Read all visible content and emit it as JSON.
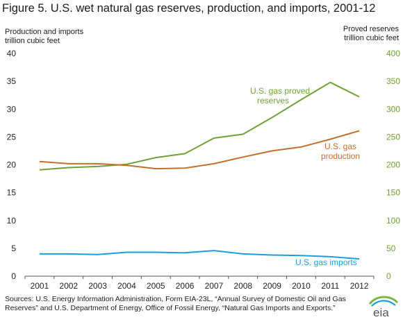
{
  "figure": {
    "title": "Figure 5. U.S. wet natural gas reserves, production, and imports, 2001-12",
    "left_axis_title": [
      "Production and imports",
      "trillion cubic feet"
    ],
    "right_axis_title": [
      "Proved reserves",
      "trillion cubic feet"
    ],
    "source": "Sources: U.S. Energy Information Administration, Form EIA-23L, “Annual Survey of Domestic Oil and Gas Reserves” and U.S. Department of Energy, Office of Fossil Energy, “Natural Gas Imports and Exports.”",
    "logo_text": "eia"
  },
  "chart_data": {
    "type": "line",
    "x": [
      2001,
      2002,
      2003,
      2004,
      2005,
      2006,
      2007,
      2008,
      2009,
      2010,
      2011,
      2012
    ],
    "y_left": {
      "title": [
        "Production and imports",
        "trillion cubic feet"
      ],
      "range": [
        0,
        40
      ],
      "ticks": [
        0,
        5,
        10,
        15,
        20,
        25,
        30,
        35,
        40
      ]
    },
    "y_right": {
      "title": [
        "Proved reserves",
        "trillion cubic feet"
      ],
      "range": [
        0,
        400
      ],
      "ticks": [
        0,
        50,
        100,
        150,
        200,
        250,
        300,
        350,
        400
      ]
    },
    "grid": false,
    "series": [
      {
        "name": "U.S. gas proved reserves",
        "label_lines": [
          "U.S. gas proved",
          "reserves"
        ],
        "axis": "right",
        "color": "#6ea135",
        "values": [
          191,
          195,
          197,
          201,
          213,
          220,
          248,
          255,
          285,
          317,
          348,
          322
        ]
      },
      {
        "name": "U.S. gas production",
        "label_lines": [
          "U.S. gas",
          "production"
        ],
        "axis": "left",
        "color": "#c0702a",
        "values": [
          20.6,
          20.2,
          20.2,
          19.9,
          19.3,
          19.4,
          20.2,
          21.4,
          22.5,
          23.2,
          24.6,
          26.1
        ]
      },
      {
        "name": "U.S. gas imports",
        "label_lines": [
          "U.S. gas imports"
        ],
        "axis": "left",
        "color": "#1aa0d8",
        "values": [
          4.0,
          4.0,
          3.9,
          4.3,
          4.3,
          4.2,
          4.6,
          4.0,
          3.8,
          3.7,
          3.5,
          3.1
        ]
      }
    ]
  }
}
